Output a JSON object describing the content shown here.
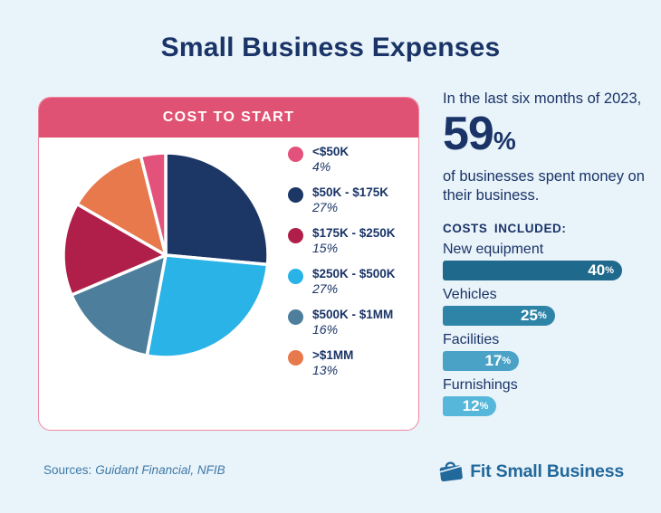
{
  "page": {
    "title": "Small Business Expenses",
    "background_color": "#e9f3fa",
    "text_color": "#1a3467"
  },
  "card": {
    "header": "COST TO START",
    "header_bg": "#e05273",
    "border_color": "#f0879e"
  },
  "stat": {
    "intro": "In the last six months of 2023,",
    "value": "59",
    "suffix": "%",
    "description": "of businesses spent money on their business."
  },
  "bar_section": {
    "heading": "COSTS INCLUDED:"
  },
  "chart_data": [
    {
      "type": "pie",
      "title": "COST TO START",
      "legend_position": "right",
      "unit": "%",
      "slices": [
        {
          "label": "<$50K",
          "value": 4,
          "color": "#e2527a"
        },
        {
          "label": "$50K - $175K",
          "value": 27,
          "color": "#1c3766"
        },
        {
          "label": "$175K - $250K",
          "value": 15,
          "color": "#b01f4a"
        },
        {
          "label": "$250K - $500K",
          "value": 27,
          "color": "#2ab3e7"
        },
        {
          "label": "$500K - $1MM",
          "value": 16,
          "color": "#4d7e9c"
        },
        {
          "label": ">$1MM",
          "value": 13,
          "color": "#e7794d"
        }
      ],
      "clockwise_order": [
        1,
        3,
        4,
        2,
        5,
        0
      ],
      "start_angle_deg": 0
    },
    {
      "type": "bar",
      "title": "COSTS INCLUDED:",
      "orientation": "horizontal",
      "categories": [
        "New equipment",
        "Vehicles",
        "Facilities",
        "Furnishings"
      ],
      "values": [
        40,
        25,
        17,
        12
      ],
      "colors": [
        "#1f698d",
        "#2e84a7",
        "#4aa3c7",
        "#56b7db"
      ],
      "unit": "%",
      "xlim": [
        0,
        40
      ],
      "value_labels_inside": true
    }
  ],
  "footer": {
    "sources_prefix": "Sources:",
    "sources_names": "Guidant Financial, NFIB",
    "logo_text": "Fit Small Business",
    "logo_color": "#21689b"
  }
}
